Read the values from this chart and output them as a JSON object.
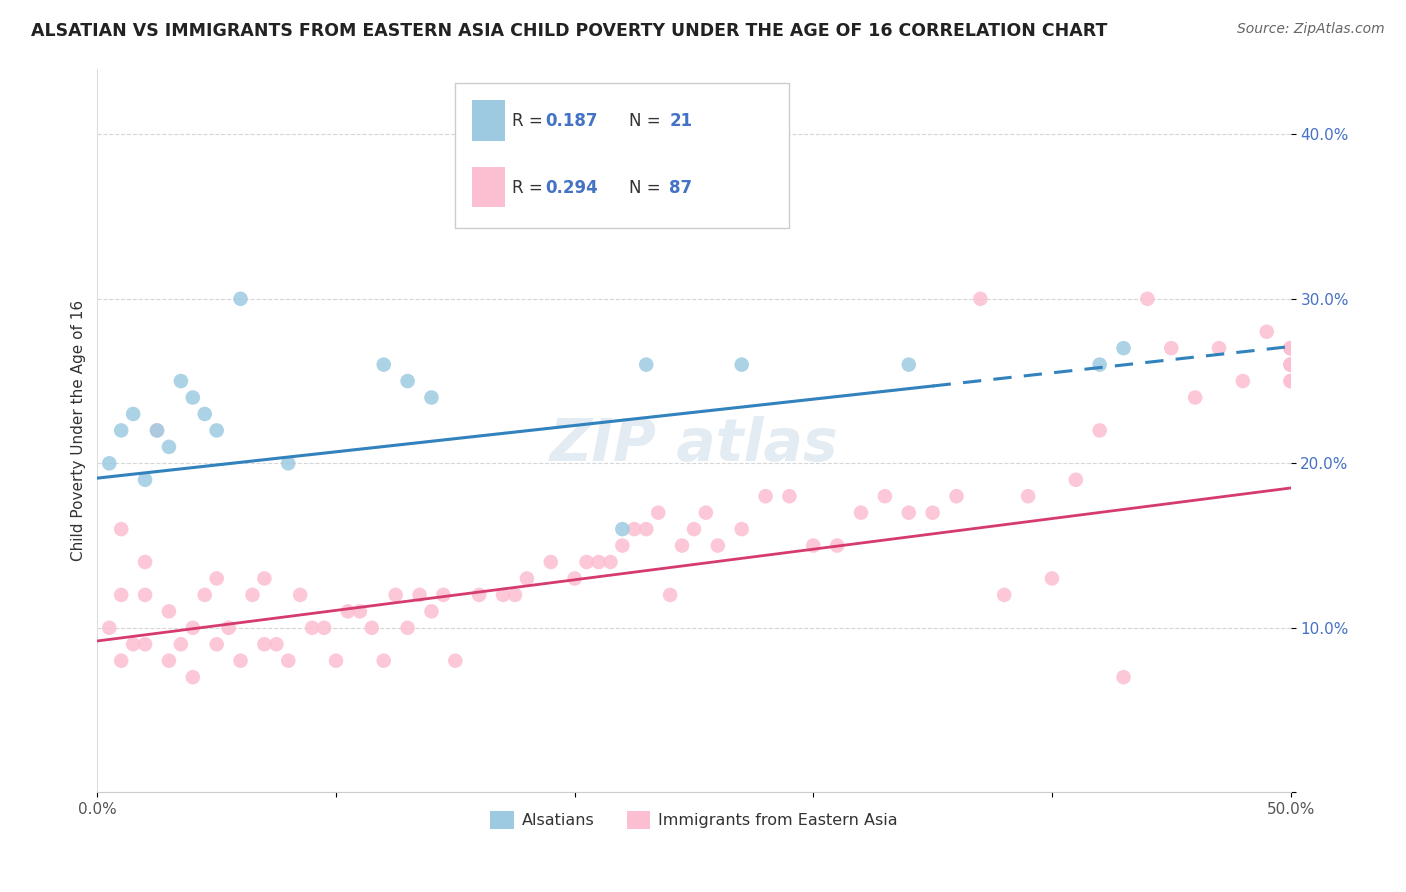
{
  "title": "ALSATIAN VS IMMIGRANTS FROM EASTERN ASIA CHILD POVERTY UNDER THE AGE OF 16 CORRELATION CHART",
  "source": "Source: ZipAtlas.com",
  "ylabel": "Child Poverty Under the Age of 16",
  "xlabel_legend1": "Alsatians",
  "xlabel_legend2": "Immigrants from Eastern Asia",
  "r1": "0.187",
  "n1": "21",
  "r2": "0.294",
  "n2": "87",
  "color_blue": "#9ecae1",
  "color_pink": "#fcbfd2",
  "color_blue_line": "#3182bd",
  "color_pink_line": "#d63b6e",
  "xlim": [
    0.0,
    0.5
  ],
  "ylim": [
    0.0,
    0.44
  ],
  "xticks": [
    0.0,
    0.1,
    0.2,
    0.3,
    0.4,
    0.5
  ],
  "yticks": [
    0.0,
    0.1,
    0.2,
    0.3,
    0.4
  ],
  "xticklabels": [
    "0.0%",
    "",
    "",
    "",
    "",
    "50.0%"
  ],
  "yticklabels": [
    "",
    "10.0%",
    "20.0%",
    "30.0%",
    "40.0%"
  ],
  "blue_x": [
    0.005,
    0.01,
    0.015,
    0.02,
    0.025,
    0.03,
    0.035,
    0.04,
    0.045,
    0.05,
    0.06,
    0.08,
    0.12,
    0.13,
    0.14,
    0.22,
    0.23,
    0.27,
    0.34,
    0.42,
    0.43
  ],
  "blue_y": [
    0.2,
    0.22,
    0.23,
    0.19,
    0.22,
    0.21,
    0.25,
    0.24,
    0.23,
    0.22,
    0.3,
    0.2,
    0.26,
    0.25,
    0.24,
    0.16,
    0.26,
    0.26,
    0.26,
    0.26,
    0.27
  ],
  "pink_x": [
    0.005,
    0.01,
    0.01,
    0.01,
    0.015,
    0.02,
    0.02,
    0.02,
    0.025,
    0.03,
    0.03,
    0.035,
    0.04,
    0.04,
    0.045,
    0.05,
    0.05,
    0.055,
    0.06,
    0.065,
    0.07,
    0.07,
    0.075,
    0.08,
    0.085,
    0.09,
    0.095,
    0.1,
    0.105,
    0.11,
    0.115,
    0.12,
    0.125,
    0.13,
    0.135,
    0.14,
    0.145,
    0.15,
    0.16,
    0.17,
    0.175,
    0.18,
    0.19,
    0.2,
    0.205,
    0.21,
    0.215,
    0.22,
    0.225,
    0.23,
    0.235,
    0.24,
    0.245,
    0.25,
    0.255,
    0.26,
    0.27,
    0.28,
    0.29,
    0.3,
    0.31,
    0.32,
    0.33,
    0.34,
    0.35,
    0.36,
    0.37,
    0.38,
    0.39,
    0.4,
    0.41,
    0.42,
    0.43,
    0.44,
    0.45,
    0.46,
    0.47,
    0.48,
    0.49,
    0.5,
    0.5,
    0.5,
    0.5,
    0.5,
    0.5,
    0.5,
    0.5
  ],
  "pink_y": [
    0.1,
    0.08,
    0.12,
    0.16,
    0.09,
    0.09,
    0.12,
    0.14,
    0.22,
    0.08,
    0.11,
    0.09,
    0.07,
    0.1,
    0.12,
    0.09,
    0.13,
    0.1,
    0.08,
    0.12,
    0.09,
    0.13,
    0.09,
    0.08,
    0.12,
    0.1,
    0.1,
    0.08,
    0.11,
    0.11,
    0.1,
    0.08,
    0.12,
    0.1,
    0.12,
    0.11,
    0.12,
    0.08,
    0.12,
    0.12,
    0.12,
    0.13,
    0.14,
    0.13,
    0.14,
    0.14,
    0.14,
    0.15,
    0.16,
    0.16,
    0.17,
    0.12,
    0.15,
    0.16,
    0.17,
    0.15,
    0.16,
    0.18,
    0.18,
    0.15,
    0.15,
    0.17,
    0.18,
    0.17,
    0.17,
    0.18,
    0.3,
    0.12,
    0.18,
    0.13,
    0.19,
    0.22,
    0.07,
    0.3,
    0.27,
    0.24,
    0.27,
    0.25,
    0.28,
    0.26,
    0.27,
    0.26,
    0.27,
    0.25,
    0.27,
    0.25,
    0.26
  ],
  "blue_line_solid_end": 0.35,
  "blue_line_start_y": 0.191,
  "blue_line_end_y": 0.271,
  "pink_line_start_y": 0.092,
  "pink_line_end_y": 0.185
}
